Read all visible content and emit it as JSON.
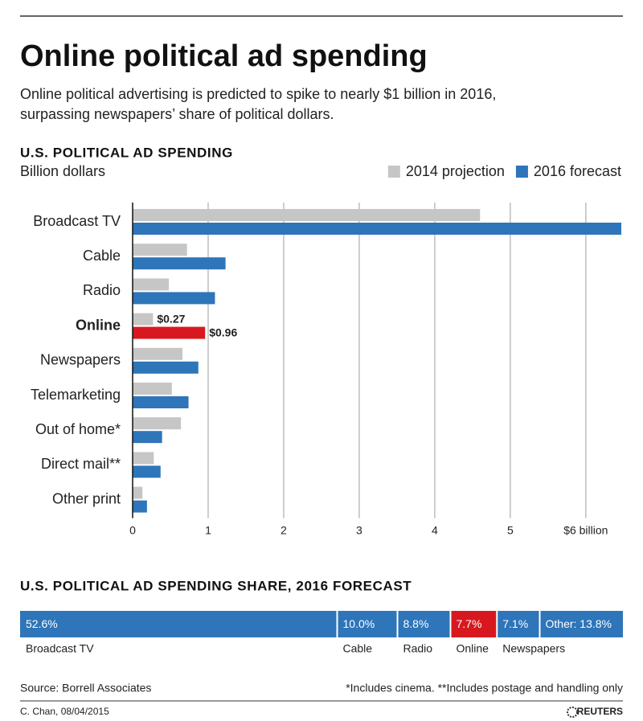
{
  "title": "Online political ad spending",
  "subtitle": [
    "Online political advertising is predicted to spike to nearly $1 billion in 2016,",
    "surpassing newspapers’ share of political dollars."
  ],
  "chart_data": [
    {
      "type": "bar",
      "orientation": "horizontal",
      "title": "U.S. POLITICAL AD SPENDING",
      "axis_label": "Billion dollars",
      "categories": [
        "Broadcast TV",
        "Cable",
        "Radio",
        "Online",
        "Newspapers",
        "Telemarketing",
        "Out of home*",
        "Direct mail**",
        "Other print"
      ],
      "series": [
        {
          "name": "2014 projection",
          "color": "#c6c6c6",
          "values": [
            4.6,
            0.72,
            0.48,
            0.27,
            0.66,
            0.52,
            0.64,
            0.28,
            0.13
          ],
          "value_labels": [
            null,
            null,
            null,
            "$0.27",
            null,
            null,
            null,
            null,
            null
          ]
        },
        {
          "name": "2016 forecast",
          "color": "#2e75b9",
          "values": [
            6.47,
            1.23,
            1.09,
            0.96,
            0.87,
            0.74,
            0.39,
            0.37,
            0.19
          ],
          "value_labels": [
            null,
            null,
            null,
            "$0.96",
            null,
            null,
            null,
            null,
            null
          ]
        }
      ],
      "highlight": {
        "category": 3,
        "color": "#d7191f"
      },
      "xlim": [
        0,
        6.47
      ],
      "xticks": [
        0,
        1,
        2,
        3,
        4,
        5,
        {
          "value": 6,
          "label": "$6 billion"
        }
      ],
      "grid": true,
      "legend": "top-right"
    },
    {
      "type": "stacked_bar",
      "title": "U.S. POLITICAL AD SPENDING SHARE, 2016 FORECAST",
      "categories": [
        "Broadcast TV",
        "Cable",
        "Radio",
        "Online",
        "Newspapers",
        null
      ],
      "values": [
        52.6,
        10.0,
        8.8,
        7.7,
        7.1,
        13.8
      ],
      "value_labels": [
        "52.6%",
        "10.0%",
        "8.8%",
        "7.7%",
        "7.1%",
        "Other: 13.8%"
      ],
      "colors": [
        "#2e75b9",
        "#2e75b9",
        "#2e75b9",
        "#d7191f",
        "#2e75b9",
        "#2e75b9"
      ],
      "xlim": [
        0,
        100
      ]
    }
  ],
  "source": "Source: Borrell Associates",
  "footnote": "*Includes cinema. **Includes postage and handling only",
  "credit": "C. Chan, 08/04/2015",
  "logo": "REUTERS"
}
